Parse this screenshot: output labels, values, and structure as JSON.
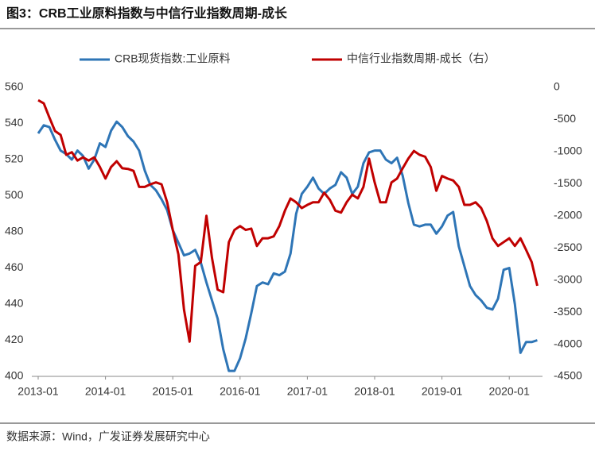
{
  "chart_data": {
    "type": "line",
    "title": "图3：CRB工业原料指数与中信行业指数周期-成长",
    "source": "数据来源：Wind，广发证券发展研究中心",
    "x": [
      "2013-01",
      "2013-02",
      "2013-03",
      "2013-04",
      "2013-05",
      "2013-06",
      "2013-07",
      "2013-08",
      "2013-09",
      "2013-10",
      "2013-11",
      "2013-12",
      "2014-01",
      "2014-02",
      "2014-03",
      "2014-04",
      "2014-05",
      "2014-06",
      "2014-07",
      "2014-08",
      "2014-09",
      "2014-10",
      "2014-11",
      "2014-12",
      "2015-01",
      "2015-02",
      "2015-03",
      "2015-04",
      "2015-05",
      "2015-06",
      "2015-07",
      "2015-08",
      "2015-09",
      "2015-10",
      "2015-11",
      "2015-12",
      "2016-01",
      "2016-02",
      "2016-03",
      "2016-04",
      "2016-05",
      "2016-06",
      "2016-07",
      "2016-08",
      "2016-09",
      "2016-10",
      "2016-11",
      "2016-12",
      "2017-01",
      "2017-02",
      "2017-03",
      "2017-04",
      "2017-05",
      "2017-06",
      "2017-07",
      "2017-08",
      "2017-09",
      "2017-10",
      "2017-11",
      "2017-12",
      "2018-01",
      "2018-02",
      "2018-03",
      "2018-04",
      "2018-05",
      "2018-06",
      "2018-07",
      "2018-08",
      "2018-09",
      "2018-10",
      "2018-11",
      "2018-12",
      "2019-01",
      "2019-02",
      "2019-03",
      "2019-04",
      "2019-05",
      "2019-06",
      "2019-07",
      "2019-08",
      "2019-09",
      "2019-10",
      "2019-11",
      "2019-12",
      "2020-01",
      "2020-02",
      "2020-03",
      "2020-04",
      "2020-05",
      "2020-06"
    ],
    "xticks": [
      "2013-01",
      "2014-01",
      "2015-01",
      "2016-01",
      "2017-01",
      "2018-01",
      "2019-01",
      "2020-01"
    ],
    "series": [
      {
        "name": "CRB现货指数:工业原料",
        "color": "#2e75b6",
        "values": [
          534.5,
          539,
          538,
          531,
          525,
          523,
          520,
          525,
          522,
          515,
          520,
          529,
          527,
          536,
          541,
          538,
          533,
          530,
          525,
          514,
          506,
          503,
          498,
          492,
          481,
          474,
          467,
          468,
          470,
          463,
          452,
          442,
          432,
          415,
          403,
          403,
          410,
          421,
          435,
          450,
          452,
          451,
          457,
          456,
          458,
          468,
          490,
          501,
          505,
          510,
          504,
          501,
          504,
          506,
          513,
          510,
          501,
          505,
          518,
          524,
          525,
          525,
          520,
          518,
          521,
          511,
          496,
          484,
          483,
          484,
          484,
          479,
          483,
          489,
          491,
          472,
          461,
          450,
          445,
          442,
          438,
          437,
          443,
          459,
          460,
          440,
          413,
          419,
          419,
          420
        ]
      },
      {
        "name": "中信行业指数周期-成长（右）",
        "color": "#c00000",
        "axis": "y2",
        "values": [
          -200,
          -250,
          -470,
          -680,
          -740,
          -1050,
          -1010,
          -1140,
          -1090,
          -1140,
          -1090,
          -1240,
          -1420,
          -1240,
          -1150,
          -1260,
          -1270,
          -1300,
          -1550,
          -1550,
          -1510,
          -1480,
          -1510,
          -1790,
          -2220,
          -2600,
          -3460,
          -3960,
          -2780,
          -2720,
          -2000,
          -2660,
          -3150,
          -3190,
          -2410,
          -2220,
          -2160,
          -2220,
          -2200,
          -2470,
          -2350,
          -2350,
          -2320,
          -2160,
          -1920,
          -1730,
          -1790,
          -1880,
          -1830,
          -1790,
          -1790,
          -1640,
          -1750,
          -1920,
          -1950,
          -1790,
          -1670,
          -1730,
          -1550,
          -1110,
          -1480,
          -1790,
          -1790,
          -1480,
          -1420,
          -1260,
          -1110,
          -990,
          -1050,
          -1080,
          -1240,
          -1610,
          -1380,
          -1420,
          -1450,
          -1550,
          -1830,
          -1830,
          -1790,
          -1880,
          -2080,
          -2350,
          -2470,
          -2410,
          -2350,
          -2470,
          -2350,
          -2530,
          -2720,
          -3090
        ]
      }
    ],
    "ylim": [
      400,
      560
    ],
    "yticks": [
      400,
      420,
      440,
      460,
      480,
      500,
      520,
      540,
      560
    ],
    "y2lim": [
      -4500,
      0
    ],
    "y2ticks": [
      -4500,
      -4000,
      -3500,
      -3000,
      -2500,
      -2000,
      -1500,
      -1000,
      -500,
      0
    ]
  }
}
